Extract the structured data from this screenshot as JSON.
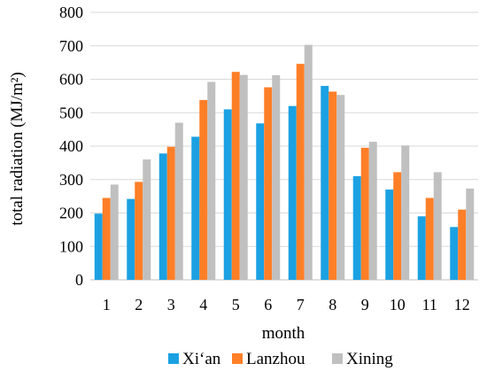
{
  "chart_data": {
    "type": "bar",
    "categories": [
      "1",
      "2",
      "3",
      "4",
      "5",
      "6",
      "7",
      "8",
      "9",
      "10",
      "11",
      "12"
    ],
    "series": [
      {
        "name": "Xi‘an",
        "color": "#1ba1e2",
        "values": [
          198,
          242,
          378,
          428,
          510,
          468,
          520,
          580,
          310,
          270,
          190,
          158
        ]
      },
      {
        "name": "Lanzhou",
        "color": "#ff7f27",
        "values": [
          245,
          293,
          398,
          538,
          622,
          576,
          646,
          563,
          395,
          322,
          245,
          210
        ]
      },
      {
        "name": "Xining",
        "color": "#c0c0c0",
        "values": [
          285,
          360,
          470,
          592,
          613,
          612,
          703,
          553,
          413,
          402,
          322,
          273
        ]
      }
    ],
    "xlabel": "month",
    "ylabel": "total radiation (MJ/m²)",
    "ylim": [
      0,
      800
    ],
    "yticks": [
      "0",
      "100",
      "200",
      "300",
      "400",
      "500",
      "600",
      "700",
      "800"
    ],
    "grid": true,
    "legend_position": "bottom"
  }
}
